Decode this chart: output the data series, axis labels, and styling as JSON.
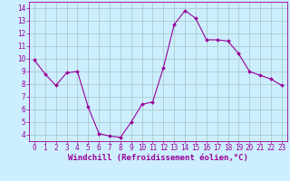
{
  "x": [
    0,
    1,
    2,
    3,
    4,
    5,
    6,
    7,
    8,
    9,
    10,
    11,
    12,
    13,
    14,
    15,
    16,
    17,
    18,
    19,
    20,
    21,
    22,
    23
  ],
  "y": [
    9.9,
    8.8,
    7.9,
    8.9,
    9.0,
    6.2,
    4.1,
    3.9,
    3.8,
    5.0,
    6.4,
    6.6,
    9.3,
    12.7,
    13.8,
    13.2,
    11.5,
    11.5,
    11.4,
    10.4,
    9.0,
    8.7,
    8.4,
    7.9
  ],
  "line_color": "#990099",
  "marker": "D",
  "marker_size": 2.0,
  "bg_color": "#cceeff",
  "grid_color": "#aacccc",
  "xlabel": "Windchill (Refroidissement éolien,°C)",
  "xlabel_color": "#990099",
  "xlabel_fontsize": 6.5,
  "tick_color": "#990099",
  "tick_fontsize": 5.5,
  "ylim": [
    3.5,
    14.5
  ],
  "yticks": [
    4,
    5,
    6,
    7,
    8,
    9,
    10,
    11,
    12,
    13,
    14
  ],
  "xlim": [
    -0.5,
    23.5
  ],
  "xticks": [
    0,
    1,
    2,
    3,
    4,
    5,
    6,
    7,
    8,
    9,
    10,
    11,
    12,
    13,
    14,
    15,
    16,
    17,
    18,
    19,
    20,
    21,
    22,
    23
  ]
}
